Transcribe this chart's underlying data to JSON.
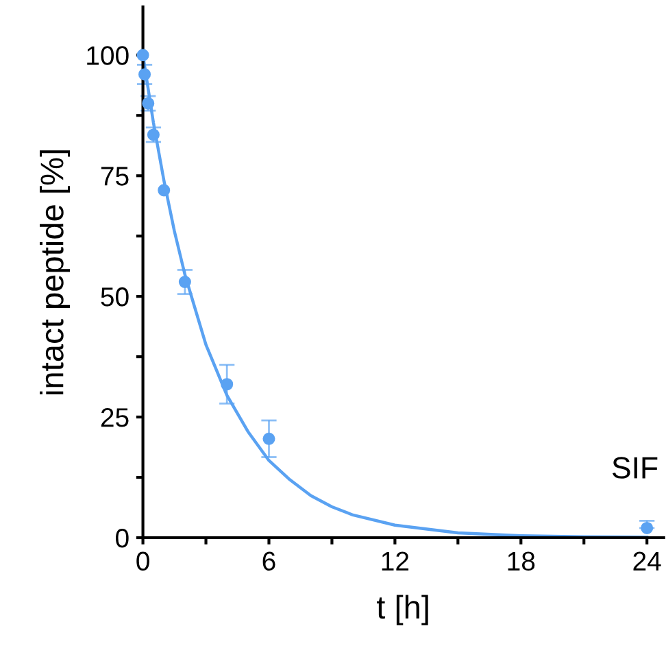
{
  "chart_data": {
    "type": "scatter",
    "xlabel": "t [h]",
    "ylabel": "intact peptide [%]",
    "annotations": [
      "SIF"
    ],
    "xlim": [
      0,
      24.8
    ],
    "ylim": [
      0,
      110
    ],
    "xticks": [
      0,
      {
        "value": 3,
        "label": null
      },
      6,
      {
        "value": 9,
        "label": null
      },
      12,
      {
        "value": 15,
        "label": null
      },
      18,
      {
        "value": 21,
        "label": null
      },
      24
    ],
    "yticks": [
      0,
      {
        "value": 12.5,
        "label": null
      },
      25,
      {
        "value": 37.5,
        "label": null
      },
      50,
      {
        "value": 62.5,
        "label": null
      },
      75,
      {
        "value": 87.5,
        "label": null
      },
      100
    ],
    "grid": false,
    "legend": false,
    "series": [
      {
        "color": "#5aa2f2",
        "marker": "circle",
        "x": [
          0,
          0.08,
          0.25,
          0.5,
          1,
          2,
          4,
          6,
          24
        ],
        "values": [
          100,
          96,
          90,
          83.5,
          72,
          53,
          31.8,
          20.5,
          2
        ],
        "errors": [
          null,
          2,
          1.5,
          1.5,
          null,
          2.5,
          4,
          3.8,
          [
            2,
            3.5
          ]
        ]
      },
      {
        "type": "line",
        "marker": "none",
        "color": "#5aa2f2",
        "x": [
          0,
          0.5,
          1,
          1.5,
          2,
          3,
          4,
          5,
          6,
          7,
          8,
          9,
          10,
          12,
          15,
          18,
          21,
          24
        ],
        "values": [
          100,
          86,
          74,
          63.5,
          54.5,
          40,
          29.5,
          22,
          16,
          12,
          8.7,
          6.4,
          4.7,
          2.6,
          1,
          0.4,
          0.2,
          0.1
        ]
      }
    ]
  }
}
